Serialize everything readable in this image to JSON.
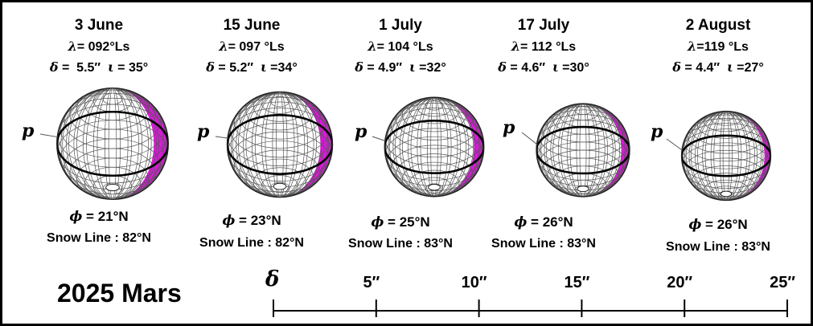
{
  "panels": [
    {
      "date": "3 June",
      "ls_sym": "λ",
      "ls_text": "= 092°Ls",
      "delta_sym": "δ",
      "delta_text": " =  5.5″",
      "iota_sym": "ι",
      "iota_text": " = 35°",
      "phi_sym": "ϕ",
      "phi_text": " = 21°N",
      "snow_text": "Snow Line : 82°N",
      "pole": "p",
      "diameter_arcsec": 5.5,
      "ls_deg": 92,
      "tilt_deg": 35,
      "phi_deg": 21,
      "snow_deg": 82
    },
    {
      "date": "15 June",
      "ls_sym": "λ",
      "ls_text": "= 097 °Ls",
      "delta_sym": "δ",
      "delta_text": " = 5.2″",
      "iota_sym": "ι",
      "iota_text": " =34°",
      "phi_sym": "ϕ",
      "phi_text": " = 23°N",
      "snow_text": "Snow Line : 82°N",
      "pole": "p",
      "diameter_arcsec": 5.2,
      "ls_deg": 97,
      "tilt_deg": 34,
      "phi_deg": 23,
      "snow_deg": 82
    },
    {
      "date": "1 July",
      "ls_sym": "λ",
      "ls_text": "= 104 °Ls",
      "delta_sym": "δ",
      "delta_text": " = 4.9″",
      "iota_sym": "ι",
      "iota_text": " =32°",
      "phi_sym": "ϕ",
      "phi_text": " = 25°N",
      "snow_text": "Snow Line : 83°N",
      "pole": "p",
      "diameter_arcsec": 4.9,
      "ls_deg": 104,
      "tilt_deg": 32,
      "phi_deg": 25,
      "snow_deg": 83
    },
    {
      "date": "17 July",
      "ls_sym": "λ",
      "ls_text": "= 112 °Ls",
      "delta_sym": "δ",
      "delta_text": " = 4.6″",
      "iota_sym": "ι",
      "iota_text": " =30°",
      "phi_sym": "ϕ",
      "phi_text": " = 26°N",
      "snow_text": "Snow Line : 83°N",
      "pole": "p",
      "diameter_arcsec": 4.6,
      "ls_deg": 112,
      "tilt_deg": 30,
      "phi_deg": 26,
      "snow_deg": 83
    },
    {
      "date": "2 August",
      "ls_sym": "λ",
      "ls_text": "=119 °Ls",
      "delta_sym": "δ",
      "delta_text": " = 4.4″",
      "iota_sym": "ι",
      "iota_text": " =27°",
      "phi_sym": "ϕ",
      "phi_text": " = 26°N",
      "snow_text": "Snow Line : 83°N",
      "pole": "p",
      "diameter_arcsec": 4.4,
      "ls_deg": 119,
      "tilt_deg": 27,
      "phi_deg": 26,
      "snow_deg": 83
    }
  ],
  "title": "2025 Mars",
  "scale": {
    "symbol": "δ",
    "ticks": [
      {
        "label": "",
        "value": 0
      },
      {
        "label": "5″",
        "value": 5
      },
      {
        "label": "10″",
        "value": 10
      },
      {
        "label": "15″",
        "value": 15
      },
      {
        "label": "20″",
        "value": 20
      },
      {
        "label": "25″",
        "value": 25
      }
    ],
    "max": 25
  },
  "colors": {
    "phase": "#e016e0",
    "grid": "#555555",
    "equator": "#000000"
  }
}
